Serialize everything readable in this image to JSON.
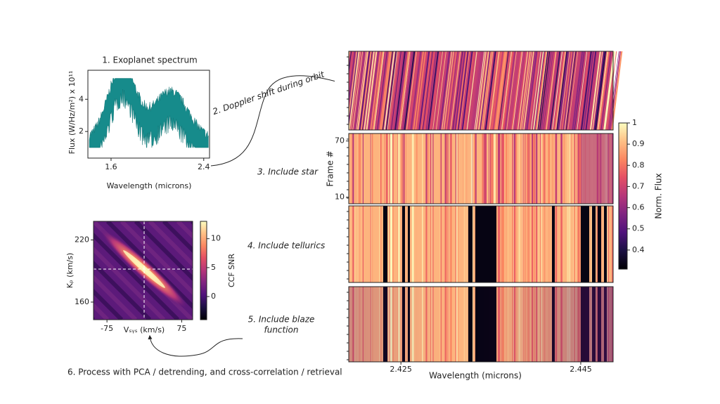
{
  "spectrum": {
    "title": "1. Exoplanet spectrum",
    "ylabel": "Flux (W/Hz/m²) x 10¹¹",
    "xlabel": "Wavelength (microns)",
    "xlim": [
      1.4,
      2.45
    ],
    "xticks": [
      1.6,
      2.4
    ],
    "ylim": [
      0.35,
      5.8
    ],
    "yticks": [
      2,
      4
    ]
  },
  "steps": {
    "doppler": "2. Doppler shift during orbit",
    "star": "3. Include star",
    "tellurics": "4. Include tellurics",
    "blaze": [
      "5. Include blaze",
      "function"
    ],
    "process": "6. Process with PCA / detrending, and cross-correlation / retrieval"
  },
  "frames": {
    "ylabel": "Frame #",
    "ylim": [
      3,
      78
    ],
    "yticks": [
      10,
      70
    ],
    "xlabel": "Wavelength (microns)",
    "xlim": [
      2.4192,
      2.4486
    ],
    "xticks": [
      2.425,
      2.445
    ],
    "colorbar": {
      "label": "Norm. Flux",
      "lim": [
        0.31,
        1.0
      ],
      "ticks": [
        0.4,
        0.5,
        0.6,
        0.7,
        0.8,
        0.9,
        1.0
      ]
    }
  },
  "ccf": {
    "ylabel": "Kₚ (km/s)",
    "xlabel": "Vₛᵧₛ (km/s)",
    "xlim": [
      -102,
      97
    ],
    "xticks": [
      -75,
      75
    ],
    "ylim": [
      143,
      238
    ],
    "yticks": [
      160,
      220
    ],
    "colorbar": {
      "label": "CCF SNR",
      "lim": [
        -4,
        13
      ],
      "ticks": [
        0,
        5,
        10
      ]
    }
  }
}
